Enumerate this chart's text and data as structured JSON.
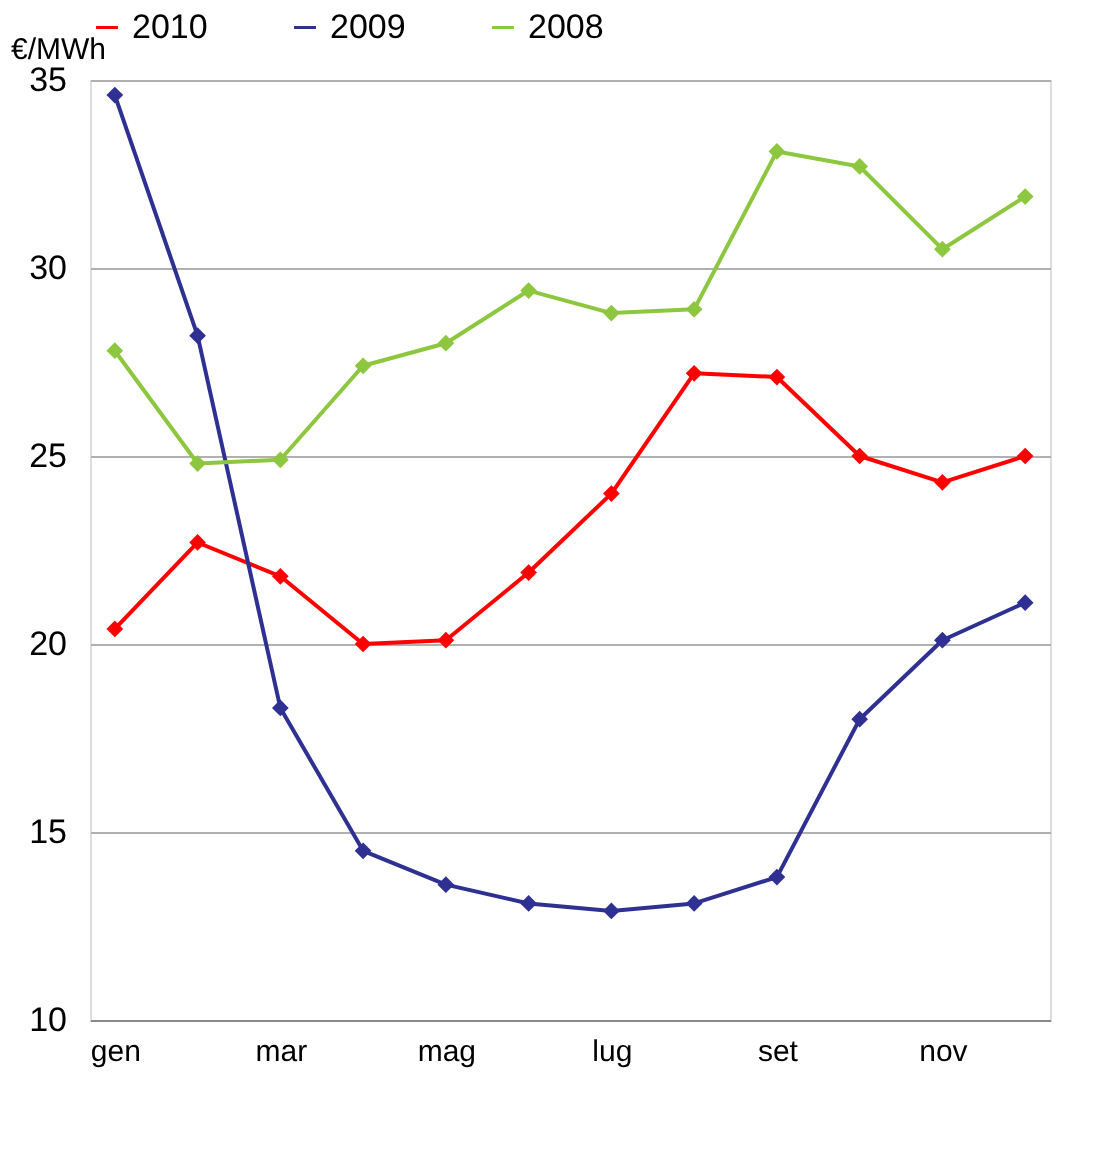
{
  "chart_data": {
    "type": "line",
    "ylabel": "€/MWh",
    "categories": [
      "gen",
      null,
      "mar",
      null,
      "mag",
      null,
      "lug",
      null,
      "set",
      null,
      "nov",
      null
    ],
    "series": [
      {
        "name": "2010",
        "color": "#ff0000",
        "values": [
          20.4,
          22.7,
          21.8,
          20.0,
          20.1,
          21.9,
          24.0,
          27.2,
          27.1,
          25.0,
          24.3,
          25.0
        ]
      },
      {
        "name": "2009",
        "color": "#2e3192",
        "values": [
          34.6,
          28.2,
          18.3,
          14.5,
          13.6,
          13.1,
          12.9,
          13.1,
          13.8,
          18.0,
          20.1,
          21.1
        ]
      },
      {
        "name": "2008",
        "color": "#8dc63f",
        "values": [
          27.8,
          24.8,
          24.9,
          27.4,
          28.0,
          29.4,
          28.8,
          28.9,
          33.1,
          32.7,
          30.5,
          31.9
        ]
      }
    ],
    "ylim": [
      10,
      35
    ],
    "yticks": [
      10,
      15,
      20,
      25,
      30,
      35
    ],
    "grid": "y",
    "legend": "top",
    "marker": "diamond",
    "line_style": "solid"
  }
}
